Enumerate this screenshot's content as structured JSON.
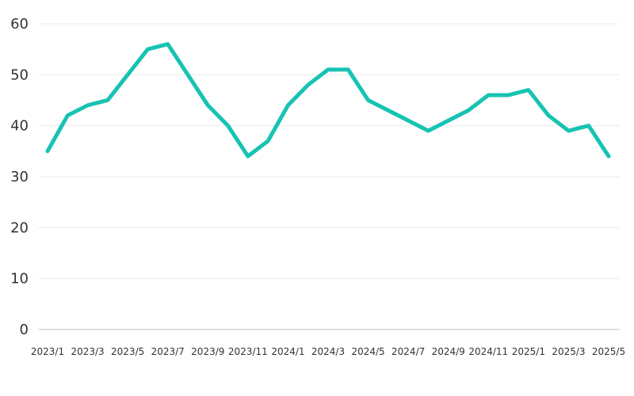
{
  "chart_data": {
    "type": "line",
    "title": "",
    "xlabel": "",
    "ylabel": "",
    "ylim": [
      0,
      60
    ],
    "yticks": [
      0,
      10,
      20,
      30,
      40,
      50,
      60
    ],
    "grid": true,
    "legend": "none",
    "x": [
      "2023/1",
      "2023/2",
      "2023/3",
      "2023/4",
      "2023/5",
      "2023/6",
      "2023/7",
      "2023/8",
      "2023/9",
      "2023/10",
      "2023/11",
      "2023/12",
      "2024/1",
      "2024/2",
      "2024/3",
      "2024/4",
      "2024/5",
      "2024/6",
      "2024/7",
      "2024/8",
      "2024/9",
      "2024/10",
      "2024/11",
      "2024/12",
      "2025/1",
      "2025/2",
      "2025/3",
      "2025/4",
      "2025/5"
    ],
    "xtick_labels": [
      "2023/1",
      "2023/3",
      "2023/5",
      "2023/7",
      "2023/9",
      "2023/11",
      "2024/1",
      "2024/3",
      "2024/5",
      "2024/7",
      "2024/9",
      "2024/11",
      "2025/1",
      "2025/3",
      "2025/5"
    ],
    "series": [
      {
        "color": "#17c3b2",
        "values": [
          35,
          42,
          44,
          45,
          50,
          55,
          56,
          50,
          44,
          40,
          34,
          37,
          44,
          48,
          51,
          51,
          45,
          43,
          41,
          39,
          41,
          43,
          46,
          46,
          47,
          42,
          39,
          40,
          34
        ]
      }
    ]
  }
}
